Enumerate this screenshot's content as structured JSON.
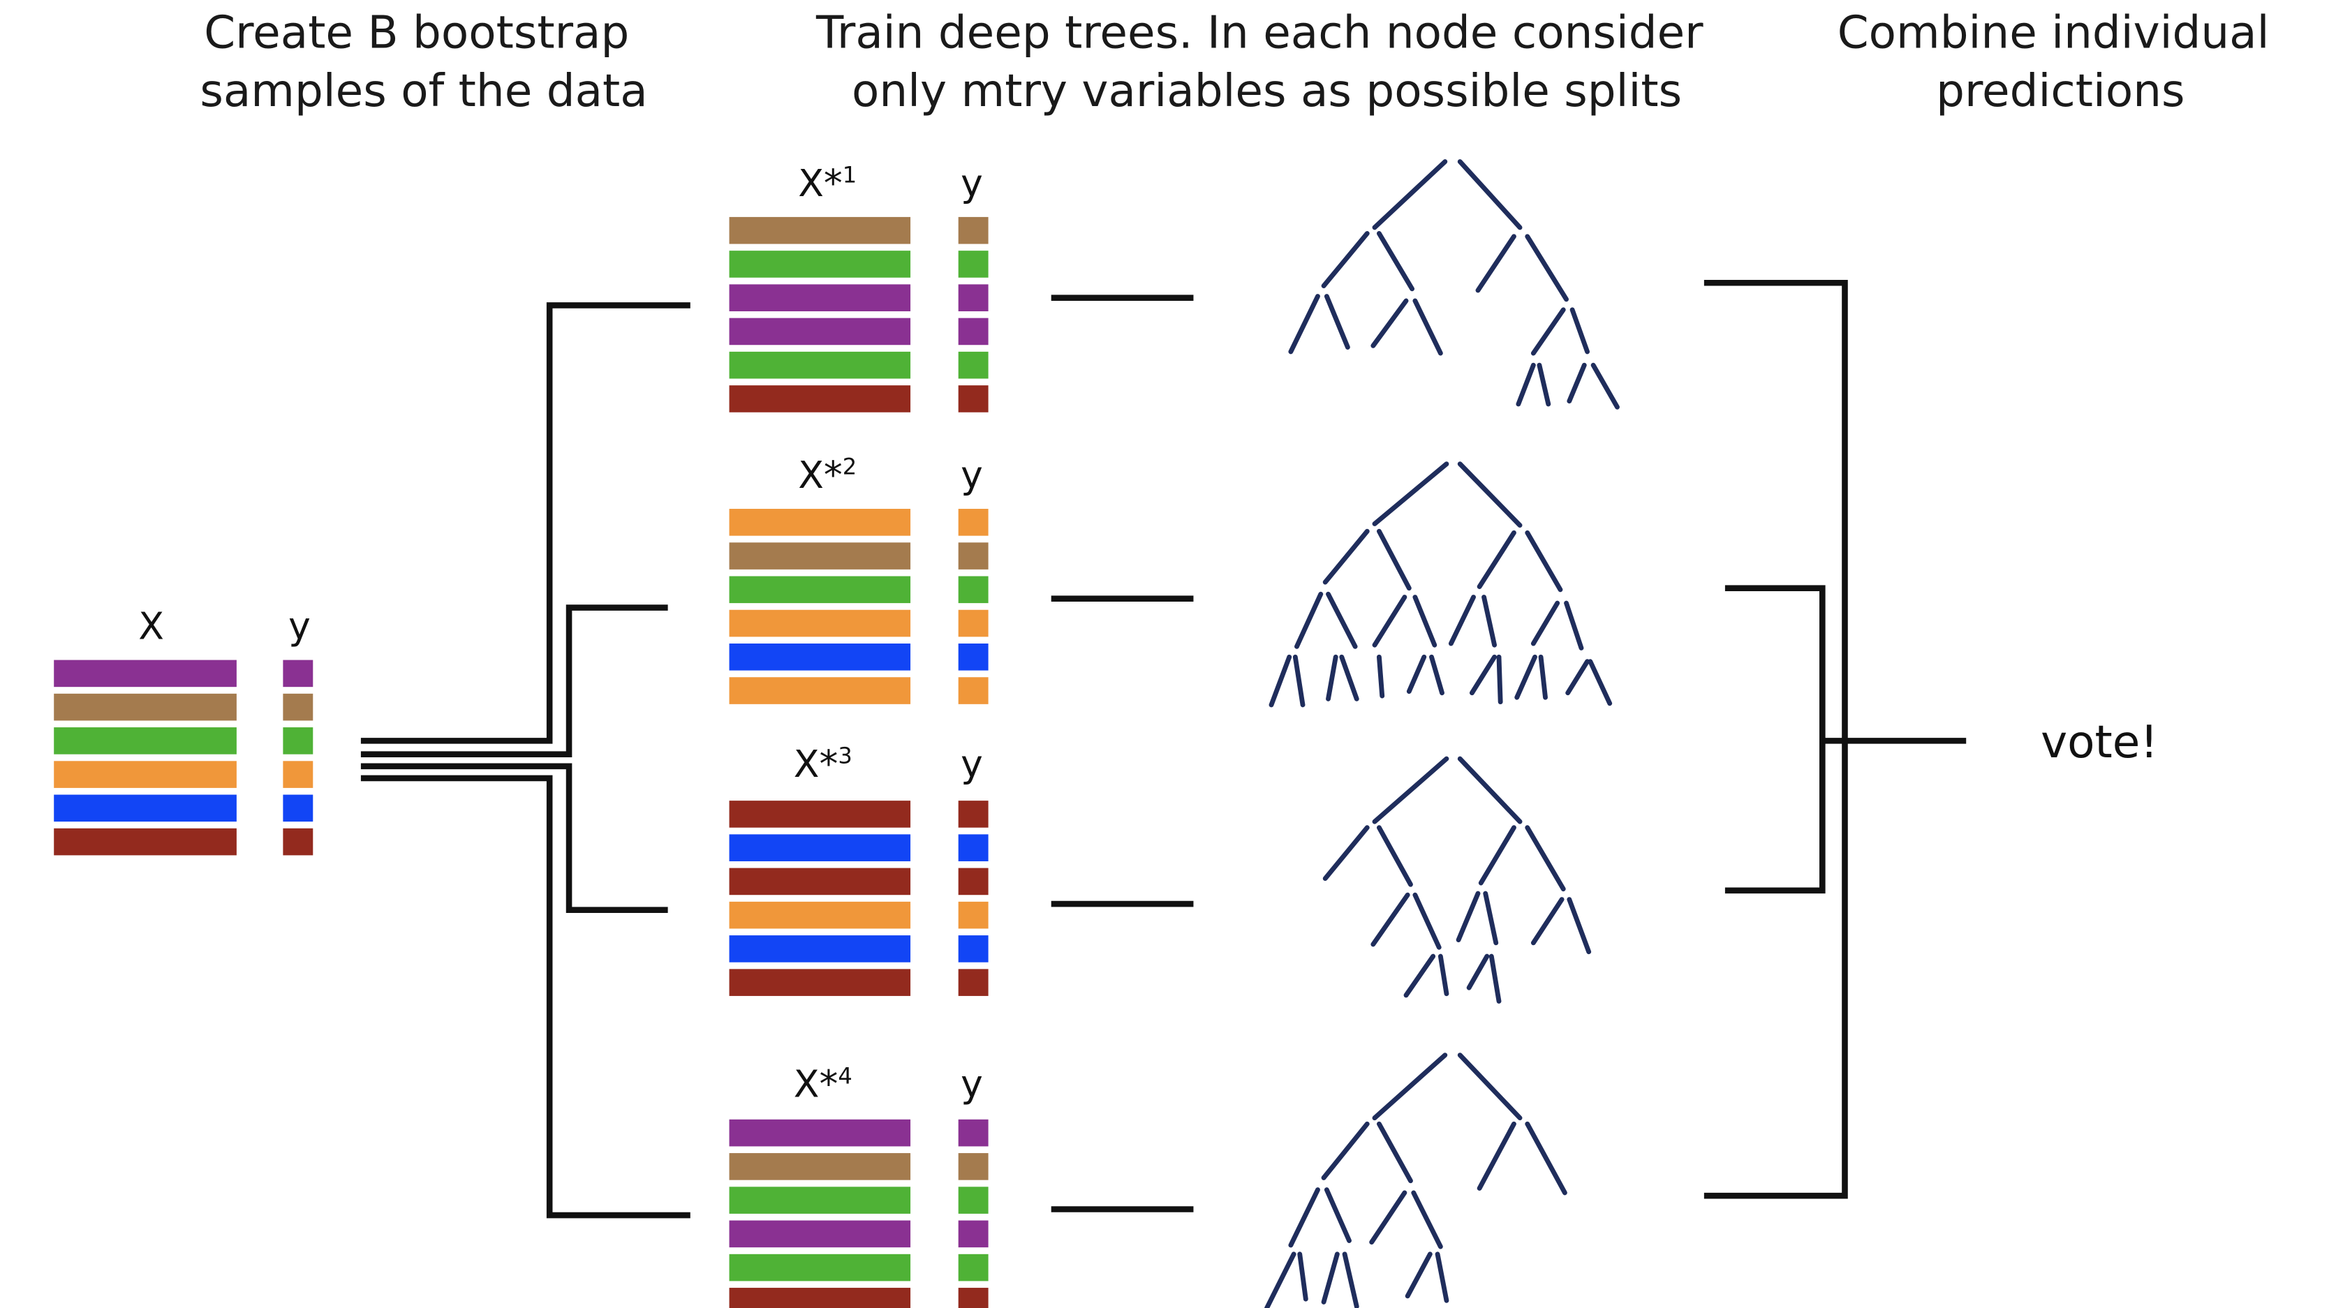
{
  "headers": {
    "bootstrap": [
      "Create B bootstrap",
      "samples of the data"
    ],
    "train": [
      "Train deep trees. In each node consider",
      "only mtry variables as possible splits"
    ],
    "combine": [
      "Combine individual",
      "predictions"
    ]
  },
  "original": {
    "x_label": "X",
    "y_label": "y",
    "rows": [
      "purple",
      "brown",
      "green",
      "orange",
      "blue",
      "red"
    ]
  },
  "samples": [
    {
      "x_label": "X*",
      "index": "1",
      "y_label": "y",
      "rows": [
        "brown",
        "green",
        "purple",
        "purple",
        "green",
        "red"
      ]
    },
    {
      "x_label": "X*",
      "index": "2",
      "y_label": "y",
      "rows": [
        "orange",
        "brown",
        "green",
        "orange",
        "blue",
        "orange"
      ]
    },
    {
      "x_label": "X*",
      "index": "3",
      "y_label": "y",
      "rows": [
        "red",
        "blue",
        "red",
        "orange",
        "blue",
        "red"
      ]
    },
    {
      "x_label": "X*",
      "index": "4",
      "y_label": "y",
      "rows": [
        "purple",
        "brown",
        "green",
        "purple",
        "green",
        "red"
      ]
    }
  ],
  "result": "vote!",
  "colors": {
    "purple": "#8a3192",
    "brown": "#a47b4e",
    "green": "#4fb236",
    "orange": "#f0973a",
    "blue": "#1245f5",
    "red": "#932a1e",
    "line": "#111111",
    "tree": "#1f2d5c"
  }
}
